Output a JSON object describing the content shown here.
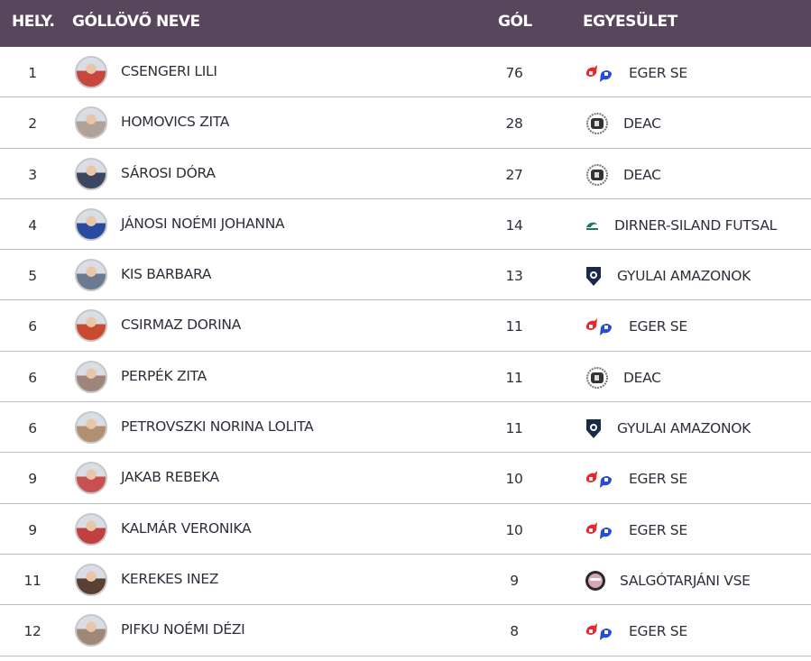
{
  "header": {
    "rank": "HELY.",
    "name": "GÓLLÖVŐ NEVE",
    "goals": "GÓL",
    "club": "EGYESÜLET"
  },
  "colors": {
    "header_bg": "#58465c",
    "row_border": "#b9bdc5"
  },
  "rows": [
    {
      "rank": "1",
      "name": "CSENGERI LILI",
      "goals": "76",
      "club": "EGER SE",
      "logo": "eger"
    },
    {
      "rank": "2",
      "name": "HOMOVICS ZITA",
      "goals": "28",
      "club": "DEAC",
      "logo": "deac"
    },
    {
      "rank": "3",
      "name": "SÁROSI DÓRA",
      "goals": "27",
      "club": "DEAC",
      "logo": "deac"
    },
    {
      "rank": "4",
      "name": "JÁNOSI NOÉMI JOHANNA",
      "goals": "14",
      "club": "DIRNER-SILAND FUTSAL",
      "logo": "dirner"
    },
    {
      "rank": "5",
      "name": "KIS BARBARA",
      "goals": "13",
      "club": "GYULAI AMAZONOK",
      "logo": "gyula"
    },
    {
      "rank": "6",
      "name": "CSIRMAZ DORINA",
      "goals": "11",
      "club": "EGER SE",
      "logo": "eger"
    },
    {
      "rank": "6",
      "name": "PERPÉK ZITA",
      "goals": "11",
      "club": "DEAC",
      "logo": "deac"
    },
    {
      "rank": "6",
      "name": "PETROVSZKI NORINA LOLITA",
      "goals": "11",
      "club": "GYULAI AMAZONOK",
      "logo": "gyula"
    },
    {
      "rank": "9",
      "name": "JAKAB REBEKA",
      "goals": "10",
      "club": "EGER SE",
      "logo": "eger"
    },
    {
      "rank": "9",
      "name": "KALMÁR VERONIKA",
      "goals": "10",
      "club": "EGER SE",
      "logo": "eger"
    },
    {
      "rank": "11",
      "name": "KEREKES INEZ",
      "goals": "9",
      "club": "SALGÓTARJÁNI VSE",
      "logo": "salgo"
    },
    {
      "rank": "12",
      "name": "PIFKU NOÉMI DÉZI",
      "goals": "8",
      "club": "EGER SE",
      "logo": "eger"
    }
  ]
}
